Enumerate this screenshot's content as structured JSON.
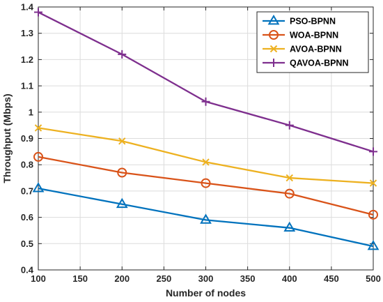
{
  "chart_data": {
    "type": "line",
    "title": "",
    "xlabel": "Number of nodes",
    "ylabel": "Throughput (Mbps)",
    "x": [
      100,
      200,
      300,
      400,
      500
    ],
    "xlim": [
      100,
      500
    ],
    "ylim": [
      0.4,
      1.4
    ],
    "xticks": [
      "100",
      "150",
      "200",
      "250",
      "300",
      "350",
      "400",
      "450",
      "500"
    ],
    "yticks": [
      "0.4",
      "0.5",
      "0.6",
      "0.7",
      "0.8",
      "0.9",
      "1",
      "1.1",
      "1.2",
      "1.3",
      "1.4"
    ],
    "grid": true,
    "legend_position": "top-right",
    "series": [
      {
        "name": "PSO-BPNN",
        "marker": "triangle",
        "color": "#0072BD",
        "values": [
          0.71,
          0.65,
          0.59,
          0.56,
          0.49
        ]
      },
      {
        "name": "WOA-BPNN",
        "marker": "circle",
        "color": "#D95319",
        "values": [
          0.83,
          0.77,
          0.73,
          0.69,
          0.61
        ]
      },
      {
        "name": "AVOA-BPNN",
        "marker": "x",
        "color": "#EDB120",
        "values": [
          0.94,
          0.89,
          0.81,
          0.75,
          0.73
        ]
      },
      {
        "name": "QAVOA-BPNN",
        "marker": "plus",
        "color": "#7E2F8E",
        "values": [
          1.38,
          1.22,
          1.04,
          0.95,
          0.85
        ]
      }
    ]
  }
}
